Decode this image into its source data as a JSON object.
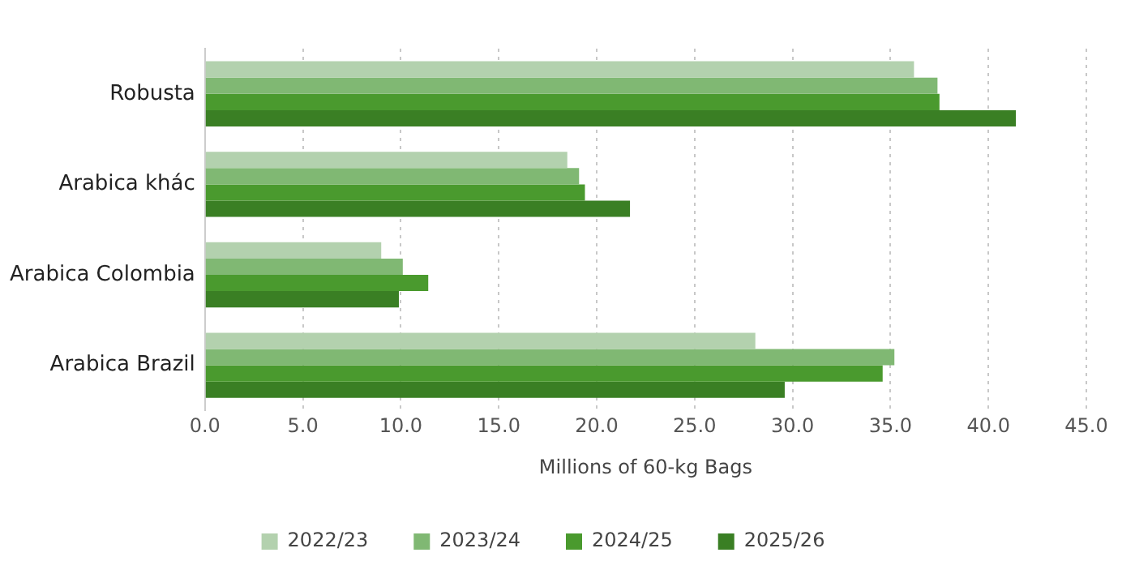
{
  "chart_data": {
    "type": "bar",
    "orientation": "horizontal",
    "xlabel": "Millions of 60-kg Bags",
    "categories": [
      "Robusta",
      "Arabica khác",
      "Arabica Colombia",
      "Arabica Brazil"
    ],
    "series": [
      {
        "name": "2022/23",
        "color": "#b3d1ae",
        "values": [
          36.2,
          18.5,
          9.0,
          28.1
        ]
      },
      {
        "name": "2023/24",
        "color": "#80b873",
        "values": [
          37.4,
          19.1,
          10.1,
          35.2
        ]
      },
      {
        "name": "2024/25",
        "color": "#4a9a2e",
        "values": [
          37.5,
          19.4,
          11.4,
          34.6
        ]
      },
      {
        "name": "2025/26",
        "color": "#3a7f24",
        "values": [
          41.4,
          21.7,
          9.9,
          29.6
        ]
      }
    ],
    "xlim": [
      0,
      45
    ],
    "xticks": [
      {
        "value": 0,
        "label": "0.0"
      },
      {
        "value": 5,
        "label": "5.0"
      },
      {
        "value": 10,
        "label": "10.0"
      },
      {
        "value": 15,
        "label": "15.0"
      },
      {
        "value": 20,
        "label": "20.0"
      },
      {
        "value": 25,
        "label": "25.0"
      },
      {
        "value": 30,
        "label": "30.0"
      },
      {
        "value": 35,
        "label": "35.0"
      },
      {
        "value": 40,
        "label": "40.0"
      },
      {
        "value": 45,
        "label": "45.0"
      }
    ],
    "grid": "x",
    "legend": "bottom"
  }
}
